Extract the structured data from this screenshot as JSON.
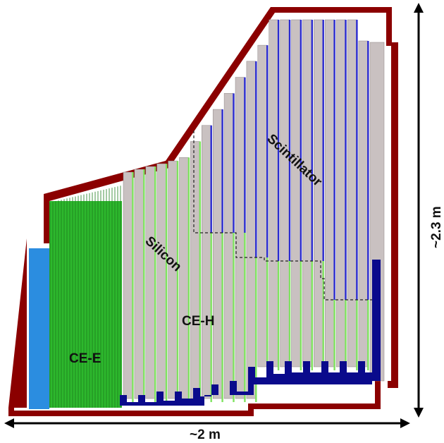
{
  "diagram": {
    "labels": {
      "ce_e": "CE-E",
      "ce_h": "CE-H",
      "silicon": "Silicon",
      "scintillator": "Scintillator",
      "width": "~2 m",
      "height": "~2.3 m"
    },
    "colors": {
      "outer_shell": "#8b0000",
      "ce_e_layers": "#2db82d",
      "ce_e_inner_block": "#2b8de0",
      "absorber_plates": "#c9c1c1",
      "scintillator_layers": "#2a2ad0",
      "silicon_layers": "#7fe35f",
      "support_base": "#0a0a8c",
      "arrows": "#000000"
    }
  }
}
